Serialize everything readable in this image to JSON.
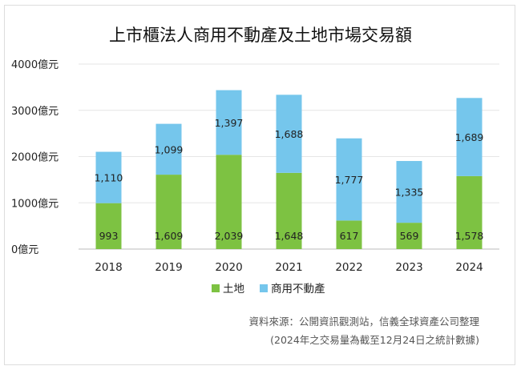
{
  "chart_data": {
    "type": "bar",
    "stacked": true,
    "title": "上市櫃法人商用不動產及土地市場交易額",
    "categories": [
      "2018",
      "2019",
      "2020",
      "2021",
      "2022",
      "2023",
      "2024"
    ],
    "series": [
      {
        "name": "土地",
        "color": "#7dc242",
        "values": [
          993,
          1609,
          2039,
          1648,
          617,
          569,
          1578
        ],
        "labels": [
          "993",
          "1,609",
          "2,039",
          "1,648",
          "617",
          "569",
          "1,578"
        ]
      },
      {
        "name": "商用不動產",
        "color": "#75c6ec",
        "values": [
          1110,
          1099,
          1397,
          1688,
          1777,
          1335,
          1689
        ],
        "labels": [
          "1,110",
          "1,099",
          "1,397",
          "1,688",
          "1,777",
          "1,335",
          "1,689"
        ]
      }
    ],
    "yticks": [
      "0億元",
      "1000億元",
      "2000億元",
      "3000億元",
      "4000億元"
    ],
    "ylim": [
      0,
      4000
    ],
    "grid": true,
    "legend": "bottom"
  },
  "source": "資料來源：公開資訊觀測站，信義全球資產公司整理",
  "note": "(2024年之交易量為截至12月24日之統計數據)"
}
